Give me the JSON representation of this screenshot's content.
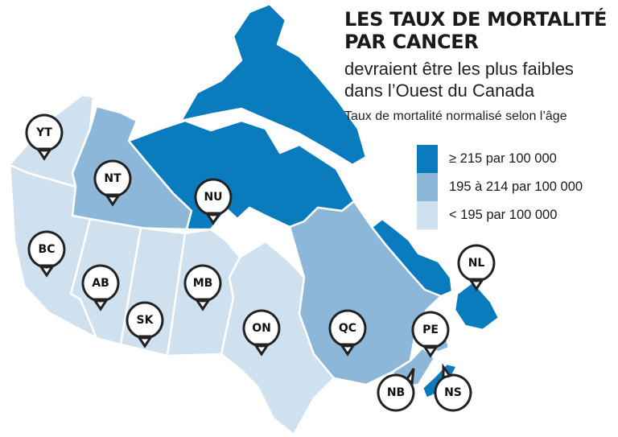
{
  "title": {
    "line1": "LES TAUX DE MORTALITÉ",
    "line2": "PAR CANCER",
    "subtitle_line1": "devraient être les plus faibles",
    "subtitle_line2": "dans l’Ouest du Canada",
    "legend_heading": "Taux de mortalité normalisé selon l’âge"
  },
  "legend": [
    {
      "label": "≥ 215 par 100 000",
      "color": "#0a7bbd"
    },
    {
      "label": "195 à 214 par 100 000",
      "color": "#8db7d9"
    },
    {
      "label": "< 195 par 100 000",
      "color": "#cfe0ee"
    }
  ],
  "colors": {
    "high": "#0a7bbd",
    "mid": "#8db7d9",
    "low": "#cfe0ee",
    "border": "#ffffff",
    "pin_fill": "#ffffff",
    "pin_stroke": "#222222"
  },
  "provinces": [
    {
      "code": "YT",
      "category": "low"
    },
    {
      "code": "NT",
      "category": "mid"
    },
    {
      "code": "NU",
      "category": "high"
    },
    {
      "code": "BC",
      "category": "low"
    },
    {
      "code": "AB",
      "category": "low"
    },
    {
      "code": "SK",
      "category": "low"
    },
    {
      "code": "MB",
      "category": "low"
    },
    {
      "code": "ON",
      "category": "low"
    },
    {
      "code": "QC",
      "category": "mid"
    },
    {
      "code": "NL",
      "category": "high"
    },
    {
      "code": "PE",
      "category": "mid"
    },
    {
      "code": "NB",
      "category": "mid"
    },
    {
      "code": "NS",
      "category": "high"
    }
  ]
}
